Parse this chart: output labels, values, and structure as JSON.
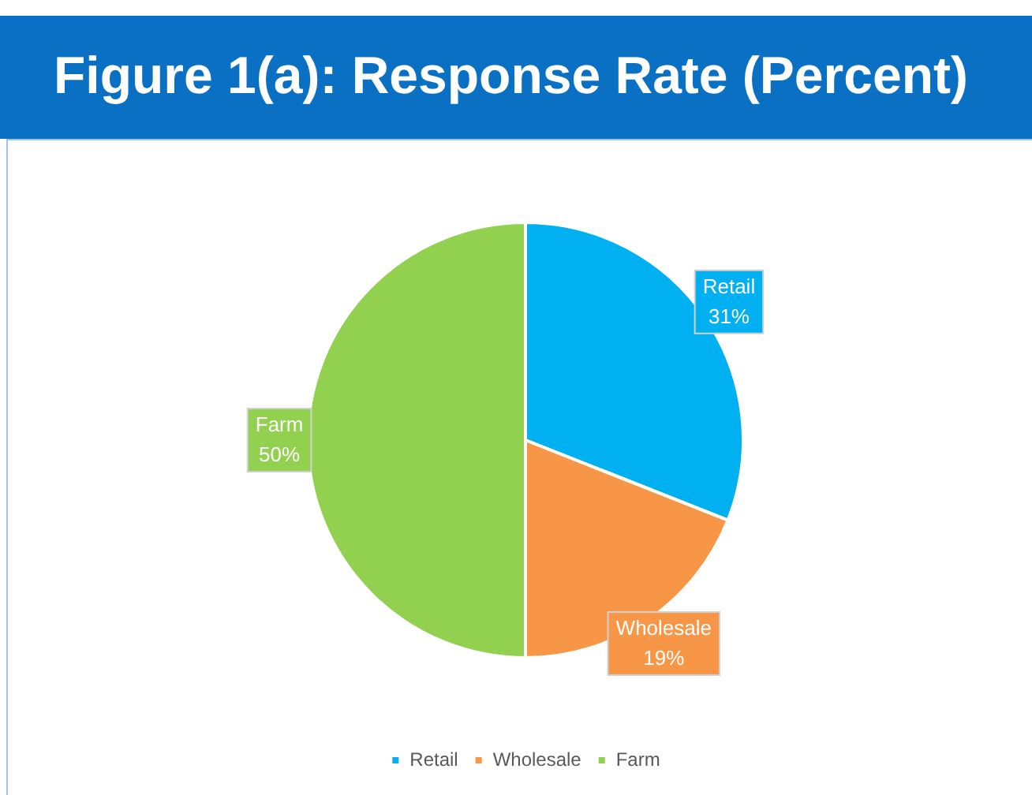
{
  "chart_data": {
    "type": "pie",
    "title": "Figure 1(a): Response Rate (Percent)",
    "categories": [
      "Retail",
      "Wholesale",
      "Farm"
    ],
    "values": [
      31,
      19,
      50
    ],
    "colors": [
      "#00b0f0",
      "#f79646",
      "#92d050"
    ],
    "value_labels": [
      "31%",
      "19%",
      "50%"
    ],
    "legend": "bottom"
  }
}
